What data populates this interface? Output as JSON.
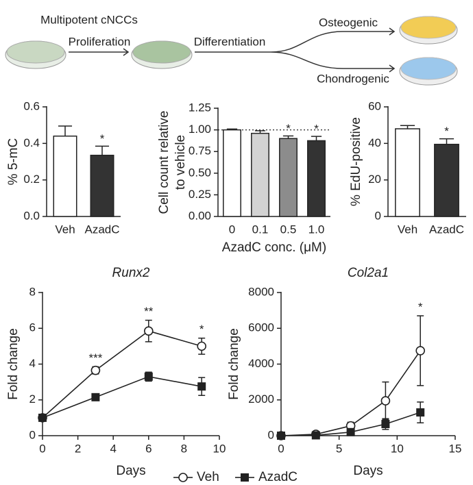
{
  "diagram": {
    "start": "Multipotent cNCCs",
    "step1": "Proliferation",
    "step2": "Differentiation",
    "branch1": "Osteogenic",
    "branch2": "Chondrogenic"
  },
  "chart_data": [
    {
      "type": "bar",
      "ylabel": "% 5-mC",
      "categories": [
        "Veh",
        "AzadC"
      ],
      "values": [
        0.44,
        0.335
      ],
      "errors": [
        0.055,
        0.05
      ],
      "colors": [
        "#ffffff",
        "#333333"
      ],
      "significance": [
        null,
        "*"
      ],
      "ylim": [
        0,
        0.6
      ],
      "yticks": [
        {
          "value": 0,
          "label": "0.0"
        },
        0.2,
        0.4,
        0.6
      ]
    },
    {
      "type": "bar",
      "ylabel": [
        "Cell count relative",
        "to vehicle"
      ],
      "xlabel": "AzadC conc. (μM)",
      "categories": [
        "0",
        "0.1",
        "0.5",
        "1.0"
      ],
      "values": [
        1.0,
        0.96,
        0.9,
        0.875
      ],
      "errors": [
        0.01,
        0.03,
        0.03,
        0.05
      ],
      "colors": [
        "#ffffff",
        "#d3d3d3",
        "#8c8c8c",
        "#333333"
      ],
      "significance": [
        null,
        null,
        "*",
        "*"
      ],
      "reference_line": 1,
      "ylim": [
        0,
        1.25
      ],
      "yticks": [
        {
          "value": 0,
          "label": "0.00"
        },
        {
          "value": 0.25,
          "label": "0.25"
        },
        {
          "value": 0.5,
          "label": "0.50"
        },
        {
          "value": 0.75,
          "label": "0.75"
        },
        {
          "value": 1,
          "label": "1.00"
        },
        {
          "value": 1.25,
          "label": "1.25"
        }
      ]
    },
    {
      "type": "bar",
      "ylabel": "% EdU-positive",
      "categories": [
        "Veh",
        "AzadC"
      ],
      "values": [
        48,
        39.5
      ],
      "errors": [
        1.8,
        3
      ],
      "colors": [
        "#ffffff",
        "#333333"
      ],
      "significance": [
        null,
        "*"
      ],
      "ylim": [
        0,
        60
      ],
      "yticks": [
        0,
        20,
        40,
        60
      ]
    },
    {
      "type": "line",
      "title": "Runx2",
      "xlabel": "Days",
      "ylabel": "Fold change",
      "x": [
        0,
        3,
        6,
        9
      ],
      "series": [
        {
          "name": "Veh",
          "color": "#222222",
          "marker": "circle-open",
          "values": [
            1,
            3.65,
            5.85,
            5.0
          ],
          "errors": [
            0.05,
            0.2,
            0.6,
            0.45
          ],
          "significance": [
            null,
            "***",
            "**",
            "*"
          ]
        },
        {
          "name": "AzadC",
          "color": "#222222",
          "marker": "square",
          "values": [
            1,
            2.15,
            3.3,
            2.75
          ],
          "errors": [
            0.05,
            0.1,
            0.25,
            0.5
          ]
        }
      ],
      "xlim": [
        0,
        10
      ],
      "xticks": [
        0,
        2,
        4,
        6,
        8,
        10
      ],
      "ylim": [
        0,
        8
      ],
      "yticks": [
        0,
        2,
        4,
        6,
        8
      ]
    },
    {
      "type": "line",
      "title": "Col2a1",
      "xlabel": "Days",
      "ylabel": "Fold change",
      "x": [
        0,
        3,
        6,
        9,
        12
      ],
      "series": [
        {
          "name": "Veh",
          "color": "#222222",
          "marker": "circle-open",
          "values": [
            0,
            80,
            550,
            1950,
            4750
          ],
          "errors": [
            30,
            60,
            200,
            1050,
            1950
          ],
          "significance": [
            null,
            null,
            null,
            null,
            "*"
          ]
        },
        {
          "name": "AzadC",
          "color": "#222222",
          "marker": "square",
          "values": [
            0,
            20,
            200,
            650,
            1300
          ],
          "errors": [
            10,
            20,
            80,
            300,
            580
          ]
        }
      ],
      "xlim": [
        0,
        15
      ],
      "xticks": [
        0,
        5,
        10,
        15
      ],
      "ylim": [
        0,
        8000
      ],
      "yticks": [
        0,
        2000,
        4000,
        6000,
        8000
      ]
    }
  ]
}
